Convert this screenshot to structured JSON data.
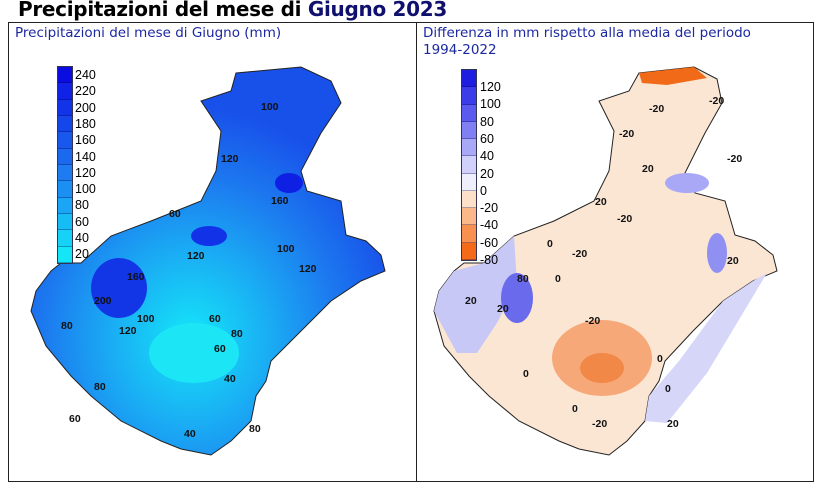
{
  "title": {
    "prefix": "Precipitazioni del mese di ",
    "highlight": "Giugno 2023"
  },
  "left": {
    "caption": "Precipitazioni del mese di Giugno (mm)",
    "legend": [
      "240",
      "220",
      "200",
      "180",
      "160",
      "140",
      "120",
      "100",
      "80",
      "60",
      "40",
      "20"
    ],
    "colors": [
      "#0a0ce0",
      "#0f22e6",
      "#1234e8",
      "#1446ea",
      "#1858ec",
      "#1b6aee",
      "#1e7cf0",
      "#1c90f2",
      "#1aa6f4",
      "#18bcf5",
      "#16d2f6",
      "#14e6f8"
    ],
    "contour_labels": [
      "100",
      "120",
      "160",
      "60",
      "120",
      "100",
      "120",
      "160",
      "200",
      "100",
      "120",
      "80",
      "60",
      "60",
      "40",
      "80",
      "60",
      "40",
      "80",
      "80"
    ]
  },
  "right": {
    "caption_line1": "Differenza in mm rispetto alla media del periodo",
    "caption_line2": "1994-2022",
    "legend": [
      "120",
      "100",
      "80",
      "60",
      "40",
      "20",
      "0",
      "-20",
      "-40",
      "-60",
      "-80"
    ],
    "colors": [
      "#1e1ee0",
      "#3c3ce8",
      "#5a5aee",
      "#8080f2",
      "#a8a8f6",
      "#d0d0fa",
      "#eeeefc",
      "#fde0c8",
      "#fbb888",
      "#f89050",
      "#f46a18"
    ],
    "contour_labels": [
      "-20",
      "-20",
      "-20",
      "20",
      "0",
      "-20",
      "20",
      "-20",
      "0",
      "-20",
      "20",
      "20",
      "80",
      "0",
      "20",
      "0",
      "-20",
      "0",
      "0",
      "-20",
      "20"
    ]
  }
}
